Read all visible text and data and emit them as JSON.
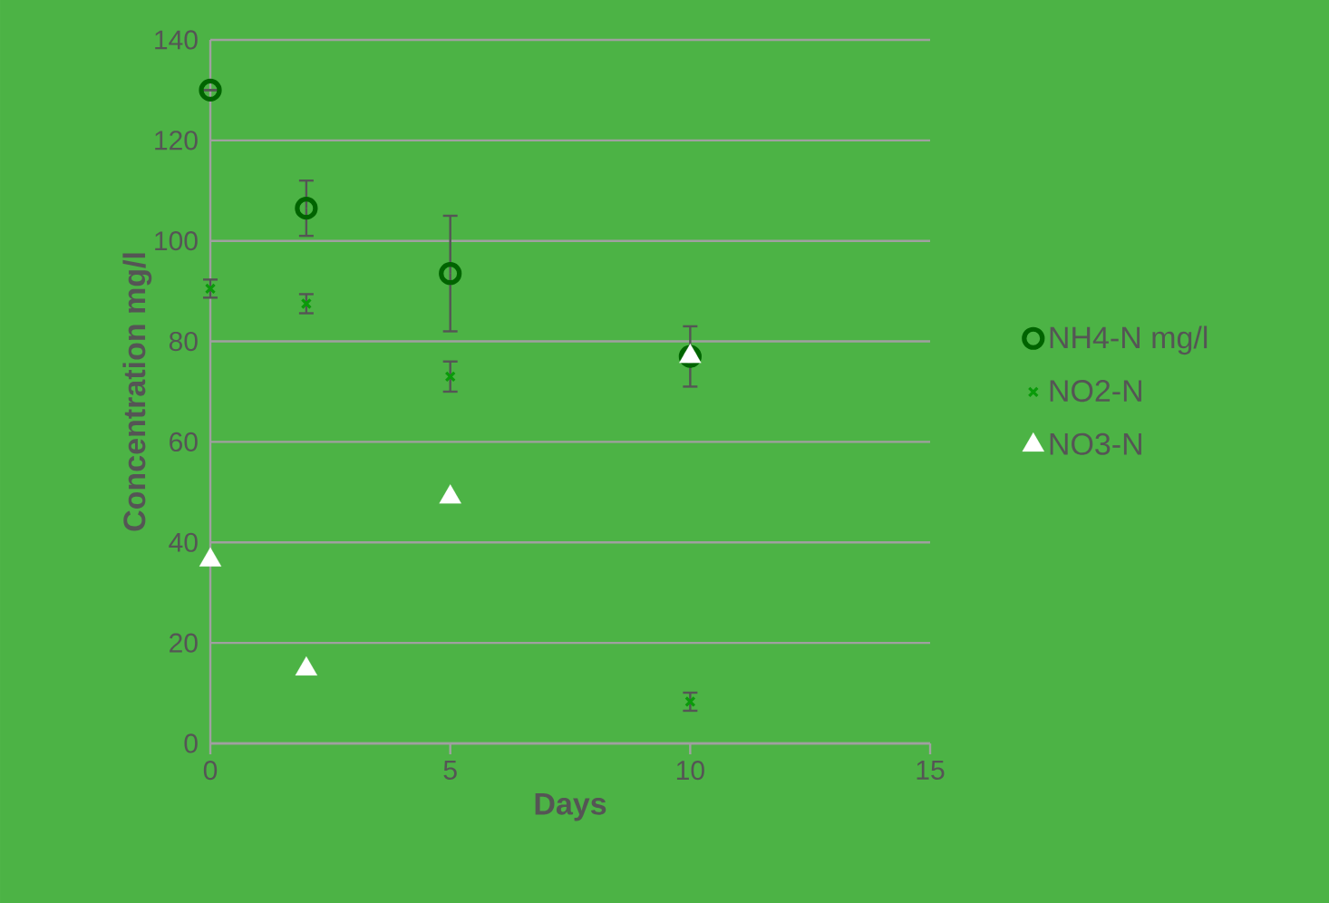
{
  "chart_data": {
    "type": "scatter",
    "xlabel": "Days",
    "ylabel": "Concentration mg/l",
    "x": [
      0,
      2,
      5,
      10
    ],
    "series": [
      {
        "name": "NH4-N mg/l",
        "color": "#006400",
        "marker": "circle",
        "values": [
          130,
          106.5,
          93.5,
          77
        ],
        "errors": [
          null,
          5.5,
          11.5,
          6
        ]
      },
      {
        "name": "NO2-N",
        "color": "#0a9a0a",
        "marker": "cross",
        "values": [
          90.5,
          87.5,
          73,
          8.3
        ],
        "errors": [
          1.8,
          1.9,
          3,
          1.8
        ]
      },
      {
        "name": "NO3-N",
        "color": "#ffffff",
        "marker": "triangle",
        "values": [
          36.5,
          14.8,
          49,
          77
        ]
      }
    ],
    "xlim": [
      0,
      15
    ],
    "ylim": [
      0,
      140
    ],
    "xticks": [
      0,
      5,
      10,
      15
    ],
    "yticks": [
      0,
      20,
      40,
      60,
      80,
      100,
      120,
      140
    ],
    "grid": "y",
    "legend": "right"
  }
}
